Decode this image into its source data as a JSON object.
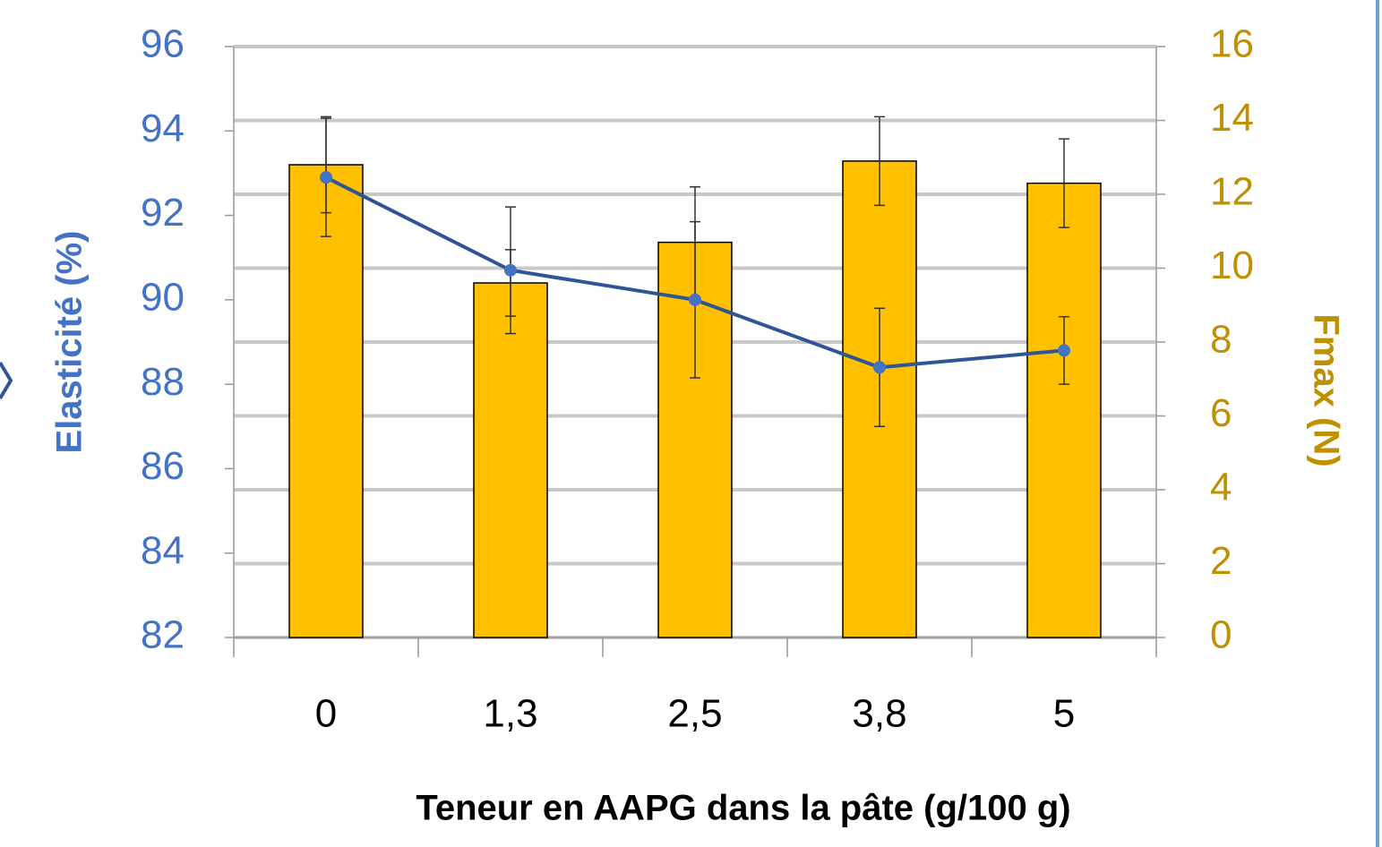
{
  "chart_data": {
    "type": "bar-line",
    "x_label": "Teneur en AAPG dans la pâte (g/100 g)",
    "y_label": "Elasticité (%)",
    "y2_label": "Fmax (N)",
    "categories": [
      "0",
      "1,3",
      "2,5",
      "3,8",
      "5"
    ],
    "series": [
      {
        "type": "bar",
        "axis": "y2",
        "color": "#FFC000",
        "values": [
          12.8,
          9.6,
          10.7,
          12.9,
          12.3
        ],
        "errors": [
          1.3,
          0.9,
          1.5,
          1.2,
          1.2
        ]
      },
      {
        "type": "line",
        "axis": "y",
        "color": "#2F5597",
        "marker_color": "#4472C4",
        "values": [
          92.9,
          90.7,
          90.0,
          88.4,
          88.8
        ],
        "errors": [
          1.4,
          1.5,
          1.85,
          1.4,
          0.8
        ]
      }
    ],
    "ylim": [
      82,
      96
    ],
    "yticks": [
      82,
      84,
      86,
      88,
      90,
      92,
      94,
      96
    ],
    "y2lim": [
      0,
      16
    ],
    "y2ticks": [
      0,
      2,
      4,
      6,
      8,
      10,
      12,
      14,
      16
    ],
    "y_color": "#4472C4",
    "y2_color": "#BF9000",
    "grid": "y2"
  }
}
